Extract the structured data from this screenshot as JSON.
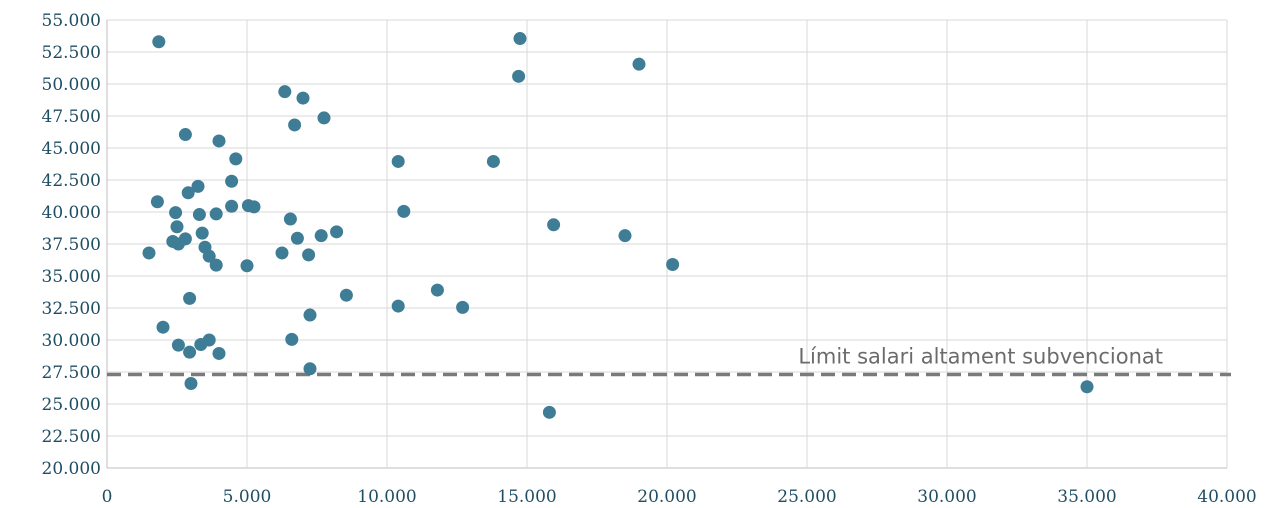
{
  "chart_data": {
    "type": "scatter",
    "title": "",
    "xlabel": "",
    "ylabel": "",
    "xlim": [
      0,
      40000
    ],
    "ylim": [
      20000,
      55000
    ],
    "x_ticks": [
      0,
      5000,
      10000,
      15000,
      20000,
      25000,
      30000,
      35000,
      40000
    ],
    "x_tick_labels": [
      "0",
      "5.000",
      "10.000",
      "15.000",
      "20.000",
      "25.000",
      "30.000",
      "35.000",
      "40.000"
    ],
    "y_ticks": [
      20000,
      22500,
      25000,
      27500,
      30000,
      32500,
      35000,
      37500,
      40000,
      42500,
      45000,
      47500,
      50000,
      52500,
      55000
    ],
    "y_tick_labels": [
      "20.000",
      "22.500",
      "25.000",
      "27.500",
      "30.000",
      "32.500",
      "35.000",
      "37.500",
      "40.000",
      "42.500",
      "45.000",
      "47.500",
      "50.000",
      "52.500",
      "55.000"
    ],
    "grid": true,
    "point_color": "#3f7d96",
    "reference_line": {
      "y": 27300,
      "label": "Límit salari altament subvencionat",
      "color": "#7a7a7a"
    },
    "points": [
      [
        1850,
        53300
      ],
      [
        14750,
        53550
      ],
      [
        14700,
        50600
      ],
      [
        19000,
        51550
      ],
      [
        6350,
        49400
      ],
      [
        7000,
        48900
      ],
      [
        6700,
        46800
      ],
      [
        7750,
        47350
      ],
      [
        2800,
        46050
      ],
      [
        4000,
        45550
      ],
      [
        4600,
        44150
      ],
      [
        10400,
        43950
      ],
      [
        13800,
        43950
      ],
      [
        4450,
        42400
      ],
      [
        3250,
        42000
      ],
      [
        2900,
        41500
      ],
      [
        1800,
        40800
      ],
      [
        4450,
        40450
      ],
      [
        5050,
        40500
      ],
      [
        5250,
        40400
      ],
      [
        2450,
        39950
      ],
      [
        3300,
        39800
      ],
      [
        3900,
        39850
      ],
      [
        10600,
        40050
      ],
      [
        6550,
        39450
      ],
      [
        15950,
        39000
      ],
      [
        2500,
        38850
      ],
      [
        3400,
        38350
      ],
      [
        8200,
        38450
      ],
      [
        7650,
        38150
      ],
      [
        18500,
        38150
      ],
      [
        6800,
        37950
      ],
      [
        2800,
        37900
      ],
      [
        2350,
        37700
      ],
      [
        2550,
        37500
      ],
      [
        3500,
        37250
      ],
      [
        1500,
        36800
      ],
      [
        3650,
        36550
      ],
      [
        6250,
        36800
      ],
      [
        7200,
        36650
      ],
      [
        3900,
        35850
      ],
      [
        5000,
        35800
      ],
      [
        20200,
        35900
      ],
      [
        8550,
        33500
      ],
      [
        11800,
        33900
      ],
      [
        2950,
        33250
      ],
      [
        10400,
        32650
      ],
      [
        12700,
        32550
      ],
      [
        7250,
        31950
      ],
      [
        2000,
        31000
      ],
      [
        3650,
        30000
      ],
      [
        6600,
        30050
      ],
      [
        2550,
        29600
      ],
      [
        3350,
        29650
      ],
      [
        2950,
        29050
      ],
      [
        4000,
        28950
      ],
      [
        7250,
        27750
      ],
      [
        3000,
        26600
      ],
      [
        35000,
        26350
      ],
      [
        15800,
        24350
      ]
    ]
  }
}
